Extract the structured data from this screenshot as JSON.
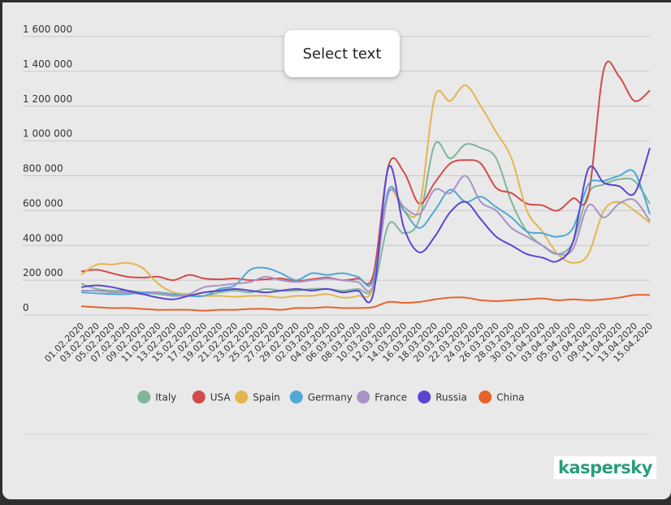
{
  "chart_data": {
    "type": "line",
    "x": [
      "01.02.2020",
      "03.02.2020",
      "05.02.2020",
      "07.02.2020",
      "09.02.2020",
      "11.02.2020",
      "13.02.2020",
      "15.02.2020",
      "17.02.2020",
      "19.02.2020",
      "21.02.2020",
      "23.02.2020",
      "25.02.2020",
      "27.02.2020",
      "29.02.2020",
      "02.03.2020",
      "04.03.2020",
      "06.03.2020",
      "08.03.2020",
      "10.03.2020",
      "12.03.2020",
      "14.03.2020",
      "16.03.2020",
      "18.03.2020",
      "20.03.2020",
      "22.03.2020",
      "24.03.2020",
      "26.03.2020",
      "28.03.2020",
      "30.03.2020",
      "01.04.2020",
      "03.04.2020",
      "05.04.2020",
      "07.04.2020",
      "09.04.2020",
      "11.04.2020",
      "13.04.2020",
      "15.04.2020"
    ],
    "ylim": [
      0,
      1600000
    ],
    "yticks": [
      0,
      {
        "value": 200000,
        "label": "200 000"
      },
      {
        "value": 400000,
        "label": "400 000"
      },
      {
        "value": 600000,
        "label": "600 000"
      },
      {
        "value": 800000,
        "label": "800 000"
      },
      {
        "value": 1000000,
        "label": "1 000 000"
      },
      {
        "value": 1200000,
        "label": "1 200 000"
      },
      {
        "value": 1400000,
        "label": "1 400 000"
      },
      {
        "value": 1600000,
        "label": "1 600 000"
      }
    ],
    "grid": true,
    "legend": "bottom",
    "series": [
      {
        "name": "Italy",
        "color": "#7fb59a",
        "values": [
          180000,
          150000,
          140000,
          140000,
          130000,
          120000,
          110000,
          110000,
          110000,
          130000,
          140000,
          130000,
          150000,
          140000,
          140000,
          150000,
          150000,
          140000,
          150000,
          150000,
          520000,
          470000,
          550000,
          980000,
          900000,
          980000,
          960000,
          900000,
          650000,
          480000,
          400000,
          350000,
          420000,
          700000,
          750000,
          780000,
          770000,
          640000
        ]
      },
      {
        "name": "USA",
        "color": "#d24b4b",
        "values": [
          250000,
          260000,
          240000,
          220000,
          215000,
          220000,
          200000,
          230000,
          210000,
          205000,
          210000,
          200000,
          205000,
          210000,
          195000,
          205000,
          215000,
          200000,
          210000,
          230000,
          860000,
          820000,
          640000,
          760000,
          870000,
          890000,
          870000,
          730000,
          700000,
          640000,
          630000,
          600000,
          670000,
          690000,
          1410000,
          1370000,
          1230000,
          1290000
        ]
      },
      {
        "name": "Spain",
        "color": "#e3b54e",
        "values": [
          230000,
          290000,
          290000,
          300000,
          270000,
          180000,
          130000,
          120000,
          110000,
          110000,
          105000,
          110000,
          110000,
          100000,
          110000,
          110000,
          120000,
          100000,
          110000,
          160000,
          700000,
          600000,
          620000,
          1250000,
          1230000,
          1320000,
          1200000,
          1050000,
          900000,
          600000,
          480000,
          350000,
          300000,
          350000,
          600000,
          650000,
          600000,
          530000
        ]
      },
      {
        "name": "Germany",
        "color": "#4fa8d6",
        "values": [
          130000,
          125000,
          120000,
          120000,
          130000,
          130000,
          120000,
          110000,
          110000,
          150000,
          170000,
          260000,
          270000,
          240000,
          200000,
          240000,
          230000,
          240000,
          220000,
          200000,
          720000,
          600000,
          500000,
          600000,
          720000,
          650000,
          680000,
          620000,
          560000,
          480000,
          470000,
          450000,
          500000,
          750000,
          770000,
          800000,
          820000,
          580000
        ]
      },
      {
        "name": "France",
        "color": "#a793c6",
        "values": [
          140000,
          140000,
          130000,
          130000,
          120000,
          130000,
          110000,
          120000,
          160000,
          170000,
          180000,
          190000,
          220000,
          200000,
          190000,
          200000,
          210000,
          200000,
          190000,
          170000,
          700000,
          620000,
          580000,
          720000,
          700000,
          800000,
          650000,
          600000,
          500000,
          450000,
          400000,
          350000,
          380000,
          630000,
          560000,
          640000,
          660000,
          540000
        ]
      },
      {
        "name": "Russia",
        "color": "#5b45cf",
        "values": [
          160000,
          170000,
          160000,
          140000,
          120000,
          100000,
          90000,
          110000,
          130000,
          140000,
          150000,
          140000,
          130000,
          140000,
          150000,
          140000,
          150000,
          130000,
          140000,
          120000,
          850000,
          500000,
          360000,
          450000,
          590000,
          650000,
          550000,
          450000,
          400000,
          350000,
          330000,
          310000,
          420000,
          840000,
          760000,
          740000,
          700000,
          960000
        ]
      },
      {
        "name": "China",
        "color": "#e8622d",
        "values": [
          50000,
          45000,
          40000,
          40000,
          35000,
          30000,
          30000,
          30000,
          25000,
          30000,
          30000,
          35000,
          35000,
          30000,
          40000,
          40000,
          45000,
          40000,
          40000,
          45000,
          75000,
          70000,
          75000,
          90000,
          100000,
          100000,
          85000,
          80000,
          85000,
          90000,
          95000,
          85000,
          90000,
          85000,
          90000,
          100000,
          115000,
          115000
        ]
      }
    ]
  },
  "popup": "Select text",
  "brand": "kaspersky"
}
